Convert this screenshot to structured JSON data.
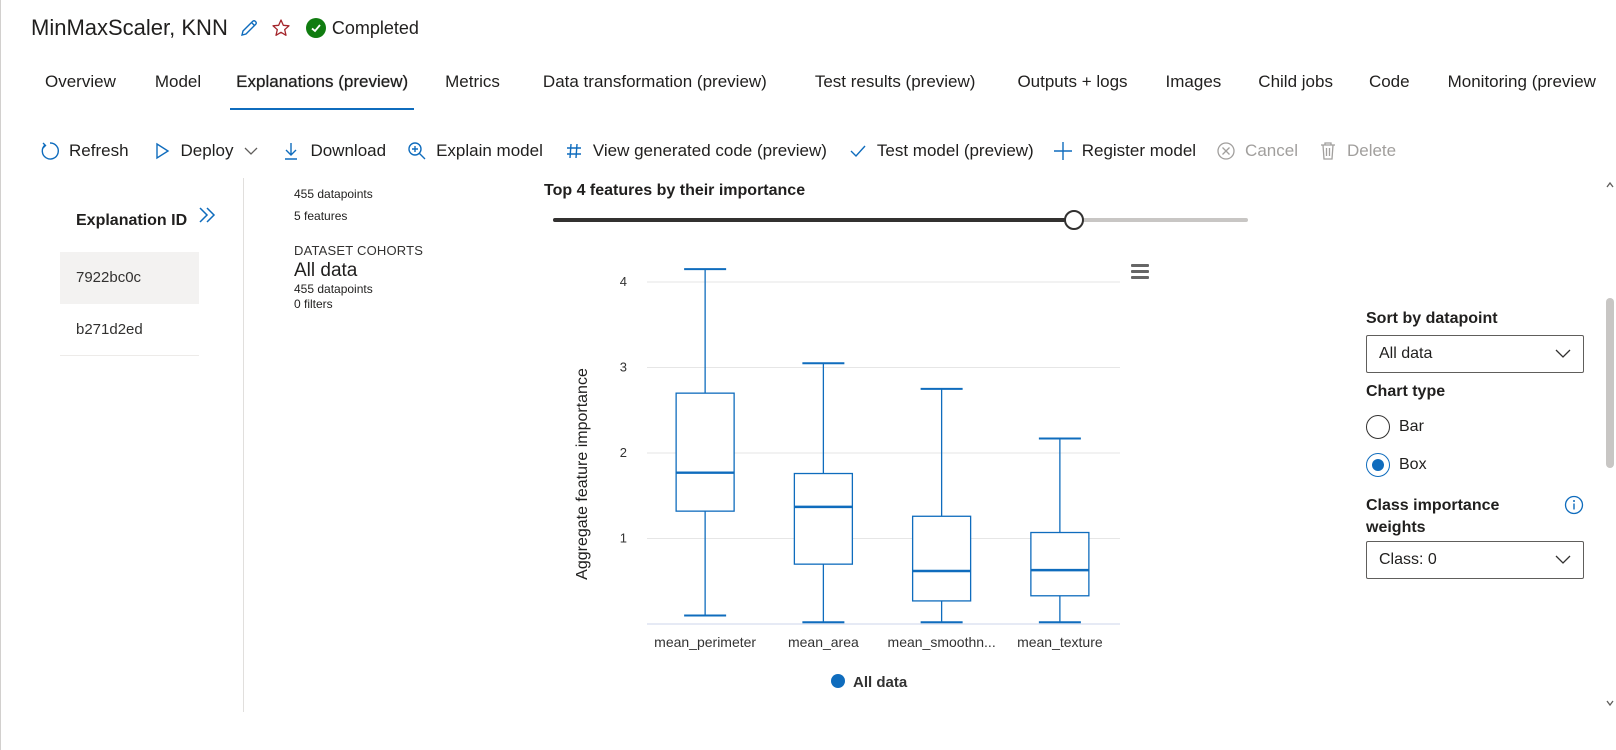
{
  "header": {
    "title": "MinMaxScaler, KNN",
    "status": "Completed",
    "colors": {
      "accent": "#0f6cbd",
      "success": "#107c10",
      "favorite": "#a4262c"
    }
  },
  "tabs": [
    {
      "label": "Overview",
      "active": false
    },
    {
      "label": "Model",
      "active": false
    },
    {
      "label": "Explanations (preview)",
      "active": true
    },
    {
      "label": "Metrics",
      "active": false
    },
    {
      "label": "Data transformation (preview)",
      "active": false
    },
    {
      "label": "Test results (preview)",
      "active": false
    },
    {
      "label": "Outputs + logs",
      "active": false
    },
    {
      "label": "Images",
      "active": false
    },
    {
      "label": "Child jobs",
      "active": false
    },
    {
      "label": "Code",
      "active": false
    },
    {
      "label": "Monitoring (preview",
      "active": false
    }
  ],
  "toolbar": {
    "refresh": "Refresh",
    "deploy": "Deploy",
    "download": "Download",
    "explain": "Explain model",
    "view_code": "View generated code (preview)",
    "test_model": "Test model (preview)",
    "register": "Register model",
    "cancel": "Cancel",
    "delete": "Delete"
  },
  "explanations": {
    "label": "Explanation ID",
    "items": [
      "7922bc0c",
      "b271d2ed"
    ],
    "selected_index": 0
  },
  "cohort": {
    "datapoints_top": "455 datapoints",
    "features": "5 features",
    "heading": "DATASET COHORTS",
    "name": "All data",
    "datapoints": "455 datapoints",
    "filters": "0 filters"
  },
  "top_features": {
    "label": "Top 4 features by their importance",
    "slider_fraction": 0.75
  },
  "chart_data": {
    "type": "box",
    "ylabel": "Aggregate feature importance",
    "yticks": [
      "1",
      "2",
      "3",
      "4"
    ],
    "ylim": [
      0,
      4.3
    ],
    "categories": [
      "mean_perimeter",
      "mean_area",
      "mean_smoothn...",
      "mean_texture"
    ],
    "series": [
      {
        "name": "All data",
        "color": "#0f6cbd",
        "boxes": [
          {
            "min": 0.1,
            "q1": 1.32,
            "median": 1.77,
            "q3": 2.7,
            "max": 4.15
          },
          {
            "min": 0.02,
            "q1": 0.7,
            "median": 1.37,
            "q3": 1.76,
            "max": 3.05
          },
          {
            "min": 0.02,
            "q1": 0.27,
            "median": 0.62,
            "q3": 1.26,
            "max": 2.75
          },
          {
            "min": 0.02,
            "q1": 0.33,
            "median": 0.63,
            "q3": 1.07,
            "max": 2.17
          }
        ]
      }
    ],
    "legend": [
      "All data"
    ],
    "legend_position": "bottom",
    "grid": true
  },
  "right_panel": {
    "sort_label": "Sort by datapoint",
    "sort_value": "All data",
    "chart_type_label": "Chart type",
    "options": [
      "Bar",
      "Box"
    ],
    "selected_option": "Box",
    "class_label": "Class importance weights",
    "class_value": "Class: 0"
  }
}
